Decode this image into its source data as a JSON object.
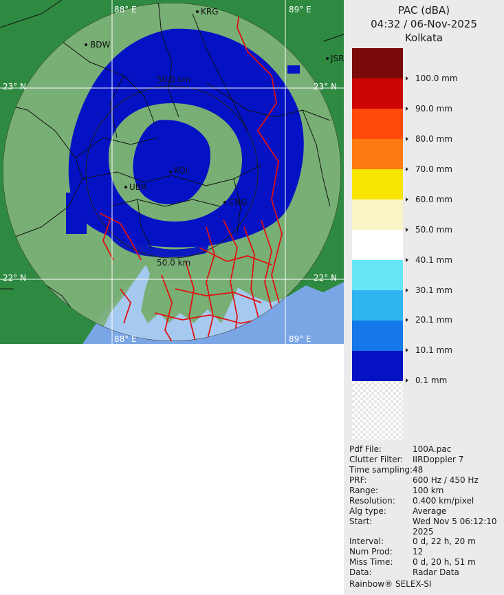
{
  "map": {
    "longitude_labels": [
      "88° E",
      "89° E",
      "88° E",
      "89° E"
    ],
    "latitude_labels": [
      "23° N",
      "23° N",
      "22° N",
      "22° N"
    ],
    "range_rings": [
      "50.0 km",
      "50.0 km"
    ],
    "stations": [
      "KRG",
      "BDW",
      "JSR",
      "KOL",
      "UBR",
      "CNG"
    ]
  },
  "panel": {
    "product": "PAC (dBA)",
    "datetime": "04:32 / 06-Nov-2025",
    "location": "Kolkata",
    "legend": [
      {
        "color": "#7a0a0a",
        "label": ""
      },
      {
        "color": "#cc0505",
        "label": "100.0 mm"
      },
      {
        "color": "#ff4a0a",
        "label": "90.0 mm"
      },
      {
        "color": "#ff7a10",
        "label": "80.0 mm"
      },
      {
        "color": "#f7e400",
        "label": "70.0 mm"
      },
      {
        "color": "#faf4c6",
        "label": "60.0 mm"
      },
      {
        "color": "#ffffff",
        "label": "50.0 mm"
      },
      {
        "color": "#66e6f7",
        "label": "40.1 mm"
      },
      {
        "color": "#30b4f0",
        "label": "30.1 mm"
      },
      {
        "color": "#1478e8",
        "label": "20.1 mm"
      },
      {
        "color": "#0412c4",
        "label": "10.1 mm"
      },
      {
        "color": "",
        "label": "0.1 mm"
      }
    ],
    "info": [
      {
        "key": "Pdf File:",
        "value": "100A.pac"
      },
      {
        "key": "Clutter Filter:",
        "value": "IIRDoppler 7"
      },
      {
        "key": "Time sampling:",
        "value": "48"
      },
      {
        "key": "PRF:",
        "value": "600 Hz / 450 Hz"
      },
      {
        "key": "Range:",
        "value": "100 km"
      },
      {
        "key": "Resolution:",
        "value": "0.400 km/pixel"
      },
      {
        "key": "Alg type:",
        "value": "Average"
      },
      {
        "key": "Start:",
        "value": "Wed Nov 5 06:12:10 2025"
      },
      {
        "key": "Interval:",
        "value": "0 d, 22 h, 20 m"
      },
      {
        "key": "Num Prod:",
        "value": "12"
      },
      {
        "key": "Miss Time:",
        "value": "0 d, 20 h, 51 m"
      },
      {
        "key": "Data:",
        "value": "Radar Data"
      }
    ],
    "brand": "Rainbow® SELEX-SI"
  }
}
